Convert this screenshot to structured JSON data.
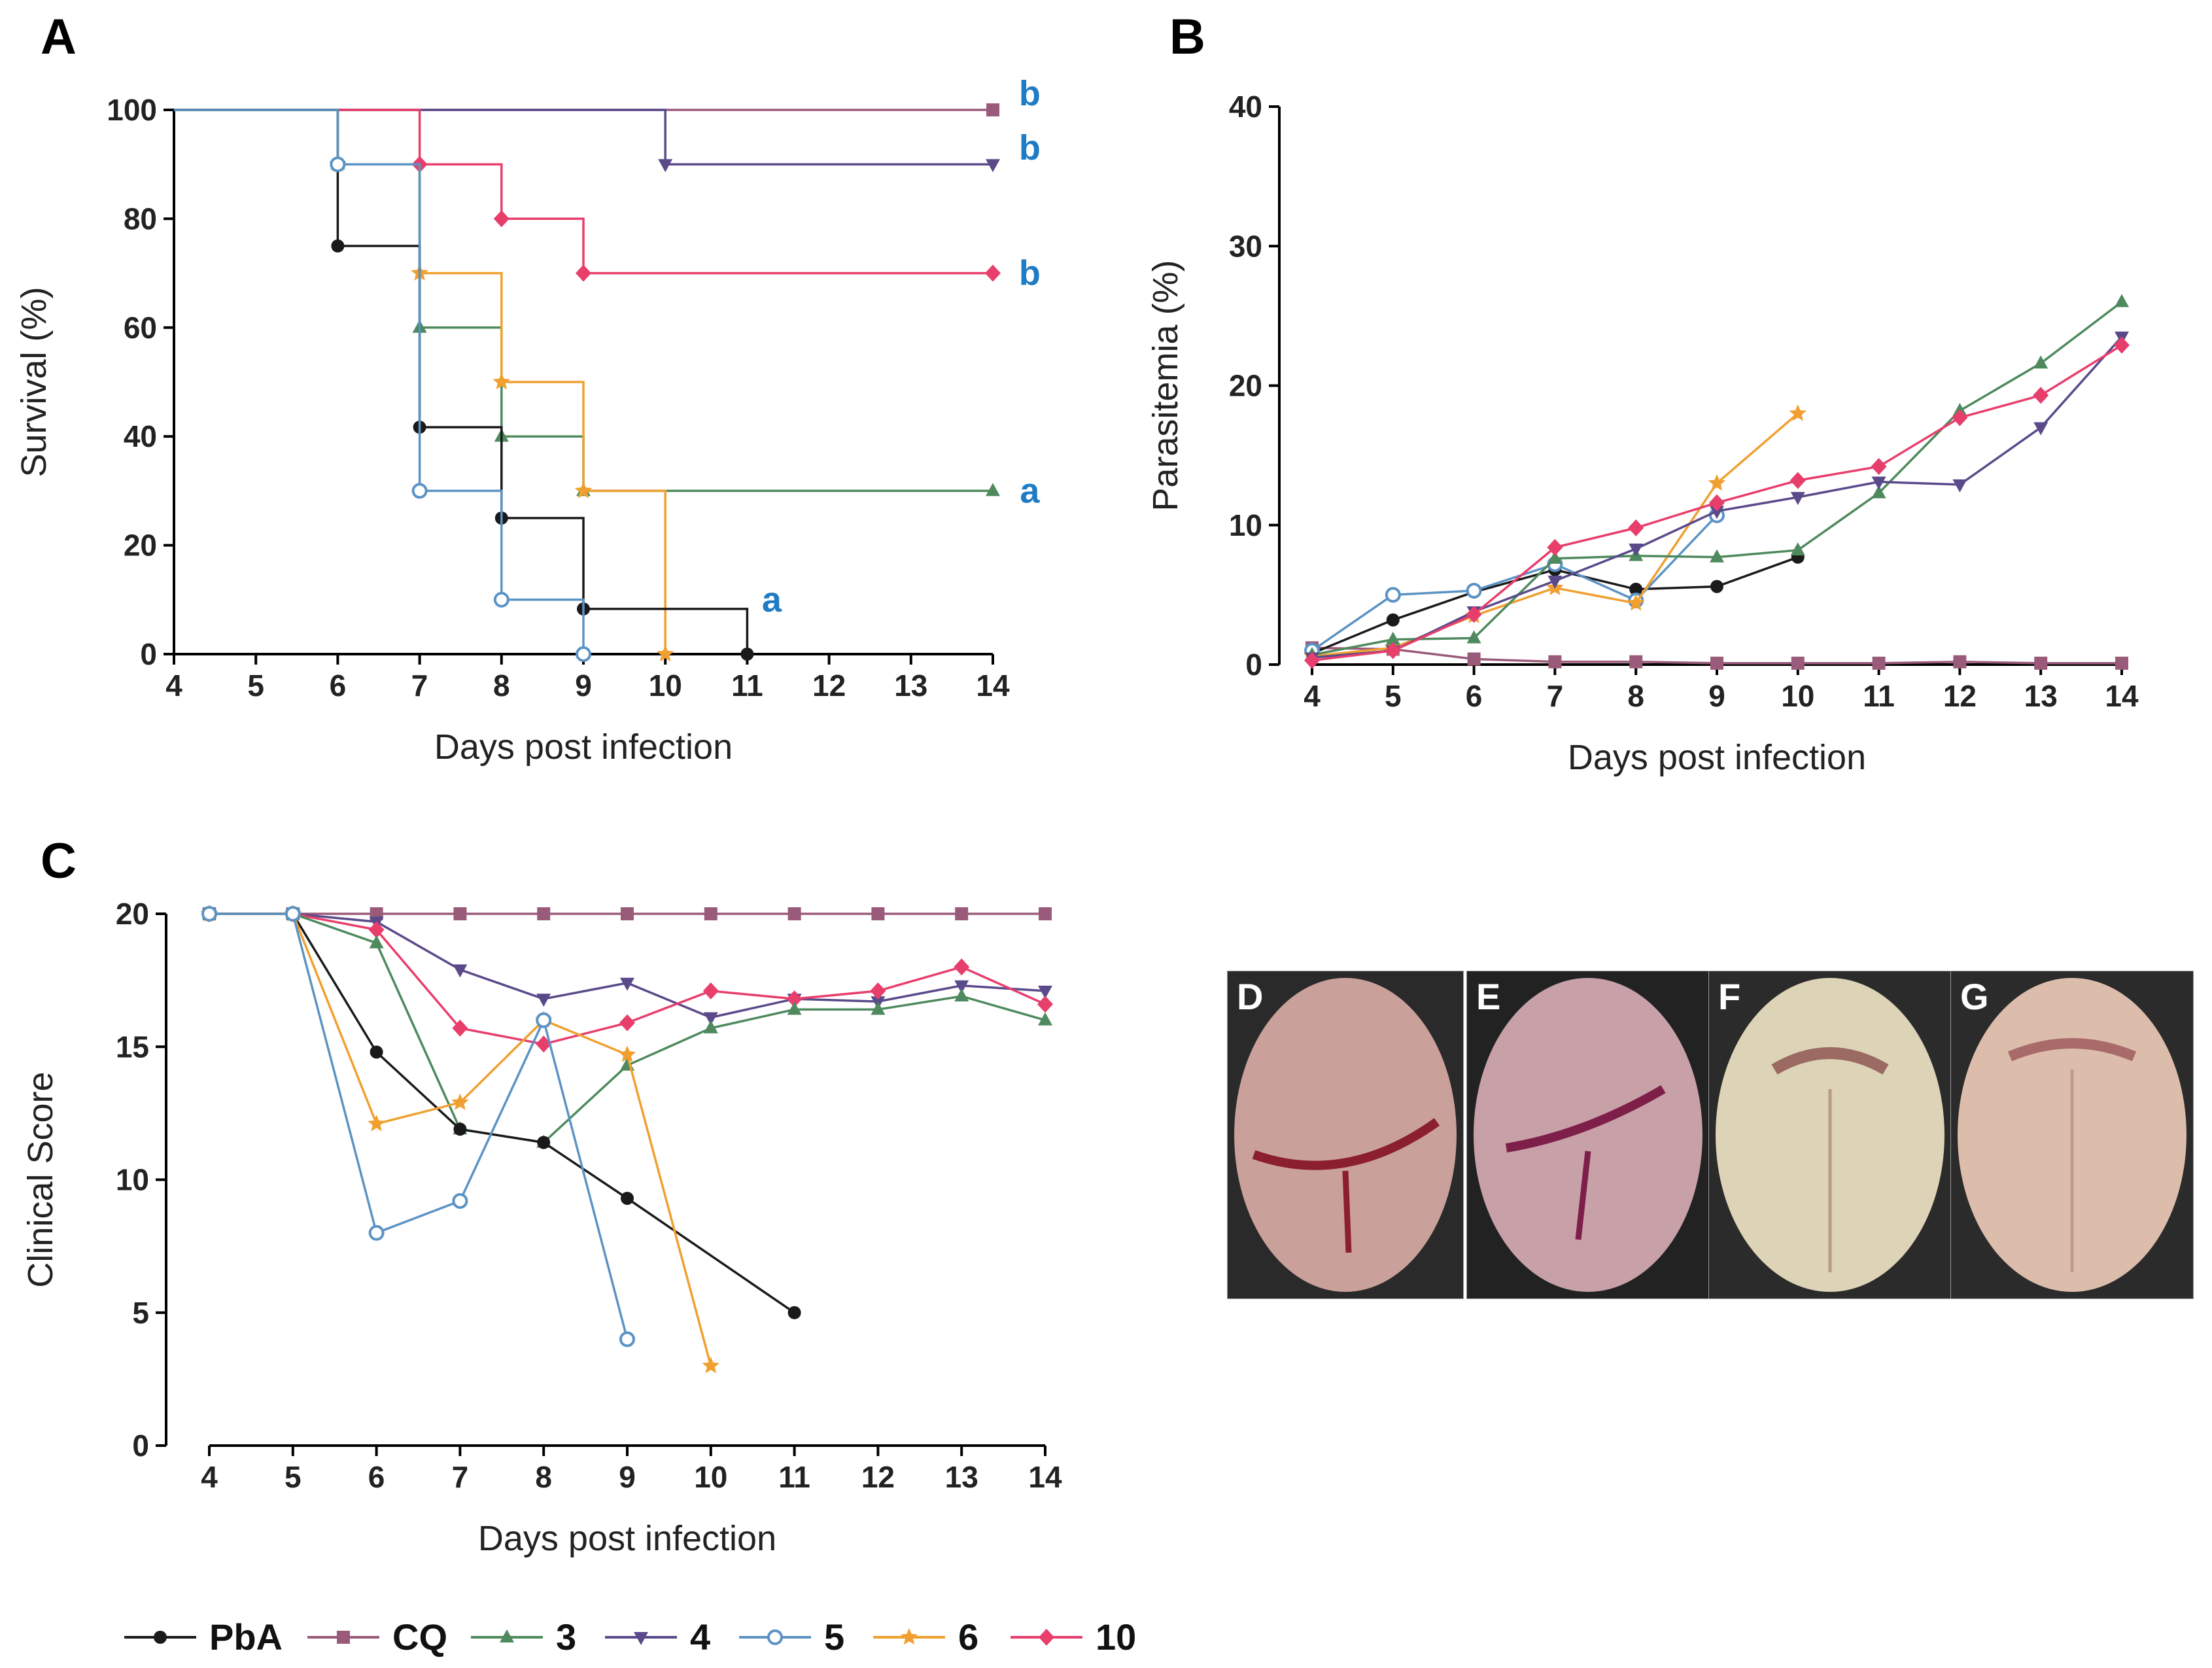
{
  "panels": {
    "A": {
      "label": "A"
    },
    "B": {
      "label": "B"
    },
    "C": {
      "label": "C"
    }
  },
  "photo_labels": [
    "D",
    "E",
    "F",
    "G"
  ],
  "colors": {
    "PbA": "#1a1a1a",
    "CQ": "#9a5b7a",
    "3": "#4e8a5e",
    "4": "#5a4a8a",
    "5": "#5b93c4",
    "6": "#f0a030",
    "10": "#e83e6c",
    "annotation": "#1f7cc4"
  },
  "legend": [
    {
      "key": "PbA",
      "label": "PbA",
      "marker": "circle"
    },
    {
      "key": "CQ",
      "label": "CQ",
      "marker": "square"
    },
    {
      "key": "3",
      "label": "3",
      "marker": "triangle-up"
    },
    {
      "key": "4",
      "label": "4",
      "marker": "triangle-down"
    },
    {
      "key": "5",
      "label": "5",
      "marker": "circle-open"
    },
    {
      "key": "6",
      "label": "6",
      "marker": "star"
    },
    {
      "key": "10",
      "label": "10",
      "marker": "diamond"
    }
  ],
  "chart_data": [
    {
      "id": "A",
      "type": "line",
      "step": true,
      "xlabel": "Days post infection",
      "ylabel": "Survival (%)",
      "xlim": [
        4,
        14
      ],
      "ylim": [
        0,
        100
      ],
      "xticks": [
        4,
        5,
        6,
        7,
        8,
        9,
        10,
        11,
        12,
        13,
        14
      ],
      "yticks": [
        0,
        20,
        40,
        60,
        80,
        100
      ],
      "series": [
        {
          "key": "CQ",
          "points": [
            [
              4,
              100
            ],
            [
              14,
              100
            ]
          ],
          "markers": [
            [
              14,
              100
            ]
          ]
        },
        {
          "key": "4",
          "points": [
            [
              4,
              100
            ],
            [
              10,
              100
            ],
            [
              10,
              90
            ],
            [
              14,
              90
            ]
          ],
          "markers": [
            [
              10,
              90
            ],
            [
              14,
              90
            ]
          ]
        },
        {
          "key": "10",
          "points": [
            [
              4,
              100
            ],
            [
              7,
              100
            ],
            [
              7,
              90
            ],
            [
              8,
              90
            ],
            [
              8,
              80
            ],
            [
              9,
              80
            ],
            [
              9,
              70
            ],
            [
              14,
              70
            ]
          ],
          "markers": [
            [
              7,
              90
            ],
            [
              8,
              80
            ],
            [
              9,
              70
            ],
            [
              14,
              70
            ]
          ]
        },
        {
          "key": "3",
          "points": [
            [
              4,
              100
            ],
            [
              6,
              100
            ],
            [
              6,
              90
            ],
            [
              7,
              90
            ],
            [
              7,
              60
            ],
            [
              8,
              60
            ],
            [
              8,
              40
            ],
            [
              9,
              40
            ],
            [
              9,
              30
            ],
            [
              14,
              30
            ]
          ],
          "markers": [
            [
              6,
              90
            ],
            [
              7,
              60
            ],
            [
              8,
              40
            ],
            [
              9,
              30
            ],
            [
              14,
              30
            ]
          ]
        },
        {
          "key": "6",
          "points": [
            [
              4,
              100
            ],
            [
              6,
              100
            ],
            [
              6,
              90
            ],
            [
              7,
              90
            ],
            [
              7,
              70
            ],
            [
              8,
              70
            ],
            [
              8,
              50
            ],
            [
              9,
              50
            ],
            [
              9,
              30
            ],
            [
              10,
              30
            ],
            [
              10,
              0
            ]
          ],
          "markers": [
            [
              6,
              90
            ],
            [
              7,
              70
            ],
            [
              8,
              50
            ],
            [
              9,
              30
            ],
            [
              10,
              0
            ]
          ]
        },
        {
          "key": "PbA",
          "points": [
            [
              4,
              100
            ],
            [
              6,
              100
            ],
            [
              6,
              75
            ],
            [
              7,
              75
            ],
            [
              7,
              41.7
            ],
            [
              8,
              41.7
            ],
            [
              8,
              25
            ],
            [
              9,
              25
            ],
            [
              9,
              8.3
            ],
            [
              11,
              8.3
            ],
            [
              11,
              0
            ]
          ],
          "markers": [
            [
              6,
              75
            ],
            [
              7,
              41.7
            ],
            [
              8,
              25
            ],
            [
              9,
              8.3
            ],
            [
              11,
              0
            ]
          ]
        },
        {
          "key": "5",
          "points": [
            [
              4,
              100
            ],
            [
              6,
              100
            ],
            [
              6,
              90
            ],
            [
              7,
              90
            ],
            [
              7,
              30
            ],
            [
              8,
              30
            ],
            [
              8,
              10
            ],
            [
              9,
              10
            ],
            [
              9,
              0
            ]
          ],
          "markers": [
            [
              6,
              90
            ],
            [
              7,
              30
            ],
            [
              8,
              10
            ],
            [
              9,
              0
            ]
          ]
        }
      ],
      "annotations": [
        {
          "text": "b",
          "x": 14.45,
          "y": 103
        },
        {
          "text": "b",
          "x": 14.45,
          "y": 93
        },
        {
          "text": "b",
          "x": 14.45,
          "y": 70
        },
        {
          "text": "a",
          "x": 14.45,
          "y": 30
        },
        {
          "text": "a",
          "x": 11.3,
          "y": 10
        }
      ]
    },
    {
      "id": "B",
      "type": "line",
      "xlabel": "Days post infection",
      "ylabel": "Parasitemia  (%)",
      "xlim": [
        4,
        14
      ],
      "ylim": [
        0,
        40
      ],
      "xticks": [
        4,
        5,
        6,
        7,
        8,
        9,
        10,
        11,
        12,
        13,
        14
      ],
      "yticks": [
        0,
        10,
        20,
        30,
        40
      ],
      "series": [
        {
          "key": "CQ",
          "x": [
            4,
            5,
            6,
            7,
            8,
            9,
            10,
            11,
            12,
            13,
            14
          ],
          "y": [
            1.2,
            1.1,
            0.4,
            0.2,
            0.2,
            0.1,
            0.1,
            0.1,
            0.2,
            0.1,
            0.1
          ]
        },
        {
          "key": "PbA",
          "x": [
            4,
            5,
            6,
            7,
            8,
            9,
            10
          ],
          "y": [
            0.8,
            3.2,
            5.2,
            6.8,
            5.4,
            5.6,
            7.7
          ]
        },
        {
          "key": "5",
          "x": [
            4,
            5,
            6,
            7,
            8,
            9
          ],
          "y": [
            1.0,
            5.0,
            5.3,
            7.2,
            4.6,
            10.7
          ]
        },
        {
          "key": "6",
          "x": [
            4,
            5,
            6,
            7,
            8,
            9,
            10
          ],
          "y": [
            0.6,
            1.2,
            3.5,
            5.5,
            4.4,
            13.0,
            18.0
          ]
        },
        {
          "key": "3",
          "x": [
            4,
            5,
            6,
            7,
            8,
            9,
            10,
            11,
            12,
            13,
            14
          ],
          "y": [
            0.7,
            1.8,
            1.9,
            7.6,
            7.8,
            7.7,
            8.2,
            12.3,
            18.2,
            21.6,
            26.0
          ]
        },
        {
          "key": "4",
          "x": [
            4,
            5,
            6,
            7,
            8,
            9,
            10,
            11,
            12,
            13,
            14
          ],
          "y": [
            0.5,
            1.0,
            3.8,
            6.0,
            8.3,
            11.0,
            12.0,
            13.1,
            12.9,
            17.0,
            23.5
          ]
        },
        {
          "key": "10",
          "x": [
            4,
            5,
            6,
            7,
            8,
            9,
            10,
            11,
            12,
            13,
            14
          ],
          "y": [
            0.3,
            1.0,
            3.6,
            8.4,
            9.8,
            11.6,
            13.2,
            14.2,
            17.7,
            19.3,
            22.9
          ]
        }
      ]
    },
    {
      "id": "C",
      "type": "line",
      "xlabel": "Days post infection",
      "ylabel": "Clinical Score",
      "xlim": [
        4,
        14
      ],
      "ylim": [
        0,
        20
      ],
      "xticks": [
        4,
        5,
        6,
        7,
        8,
        9,
        10,
        11,
        12,
        13,
        14
      ],
      "yticks": [
        0,
        5,
        10,
        15,
        20
      ],
      "series": [
        {
          "key": "CQ",
          "x": [
            4,
            5,
            6,
            7,
            8,
            9,
            10,
            11,
            12,
            13,
            14
          ],
          "y": [
            20,
            20,
            20,
            20,
            20,
            20,
            20,
            20,
            20,
            20,
            20
          ]
        },
        {
          "key": "4",
          "x": [
            4,
            5,
            6,
            7,
            8,
            9,
            10,
            11,
            12,
            13,
            14
          ],
          "y": [
            20,
            20,
            19.7,
            17.9,
            16.8,
            17.4,
            16.1,
            16.8,
            16.7,
            17.3,
            17.1
          ]
        },
        {
          "key": "10",
          "x": [
            4,
            5,
            6,
            7,
            8,
            9,
            10,
            11,
            12,
            13,
            14
          ],
          "y": [
            20,
            20,
            19.4,
            15.7,
            15.1,
            15.9,
            17.1,
            16.8,
            17.1,
            18.0,
            16.6
          ]
        },
        {
          "key": "3",
          "x": [
            4,
            5,
            6,
            7,
            8,
            9,
            10,
            11,
            12,
            13,
            14
          ],
          "y": [
            20,
            20,
            18.9,
            11.9,
            11.4,
            14.3,
            15.7,
            16.4,
            16.4,
            16.9,
            16.0
          ]
        },
        {
          "key": "PbA",
          "x": [
            4,
            5,
            6,
            7,
            8,
            9,
            11
          ],
          "y": [
            20,
            20,
            14.8,
            11.9,
            11.4,
            9.3,
            5.0
          ]
        },
        {
          "key": "6",
          "x": [
            4,
            5,
            6,
            7,
            8,
            9,
            10
          ],
          "y": [
            20,
            20,
            12.1,
            12.9,
            16.0,
            14.7,
            3.0
          ]
        },
        {
          "key": "5",
          "x": [
            4,
            5,
            6,
            7,
            8,
            9
          ],
          "y": [
            20,
            20,
            8.0,
            9.2,
            16.0,
            4.0
          ]
        }
      ]
    }
  ]
}
